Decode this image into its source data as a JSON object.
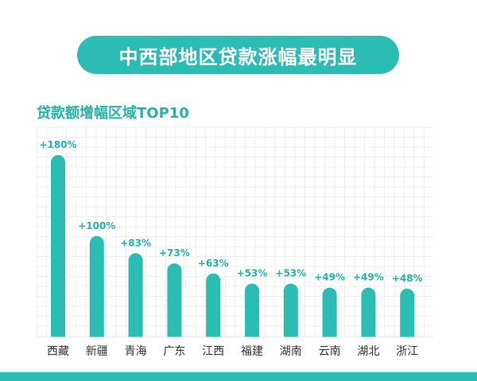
{
  "banner": {
    "title": "中西部地区贷款涨幅最明显"
  },
  "chart_data": {
    "type": "bar",
    "title": "贷款额增幅区域TOP10",
    "categories": [
      "西藏",
      "新疆",
      "青海",
      "广东",
      "江西",
      "福建",
      "湖南",
      "云南",
      "湖北",
      "浙江"
    ],
    "values": [
      180,
      100,
      83,
      73,
      63,
      53,
      53,
      49,
      49,
      48
    ],
    "labels": [
      "+180%",
      "+100%",
      "+83%",
      "+73%",
      "+63%",
      "+53%",
      "+53%",
      "+49%",
      "+49%",
      "+48%"
    ],
    "unit": "%",
    "ylim": [
      0,
      180
    ],
    "grid": true
  },
  "colors": {
    "accent": "#2bbcb3",
    "label": "#23b3aa",
    "grid": "#eeeeee",
    "text": "#333333"
  }
}
